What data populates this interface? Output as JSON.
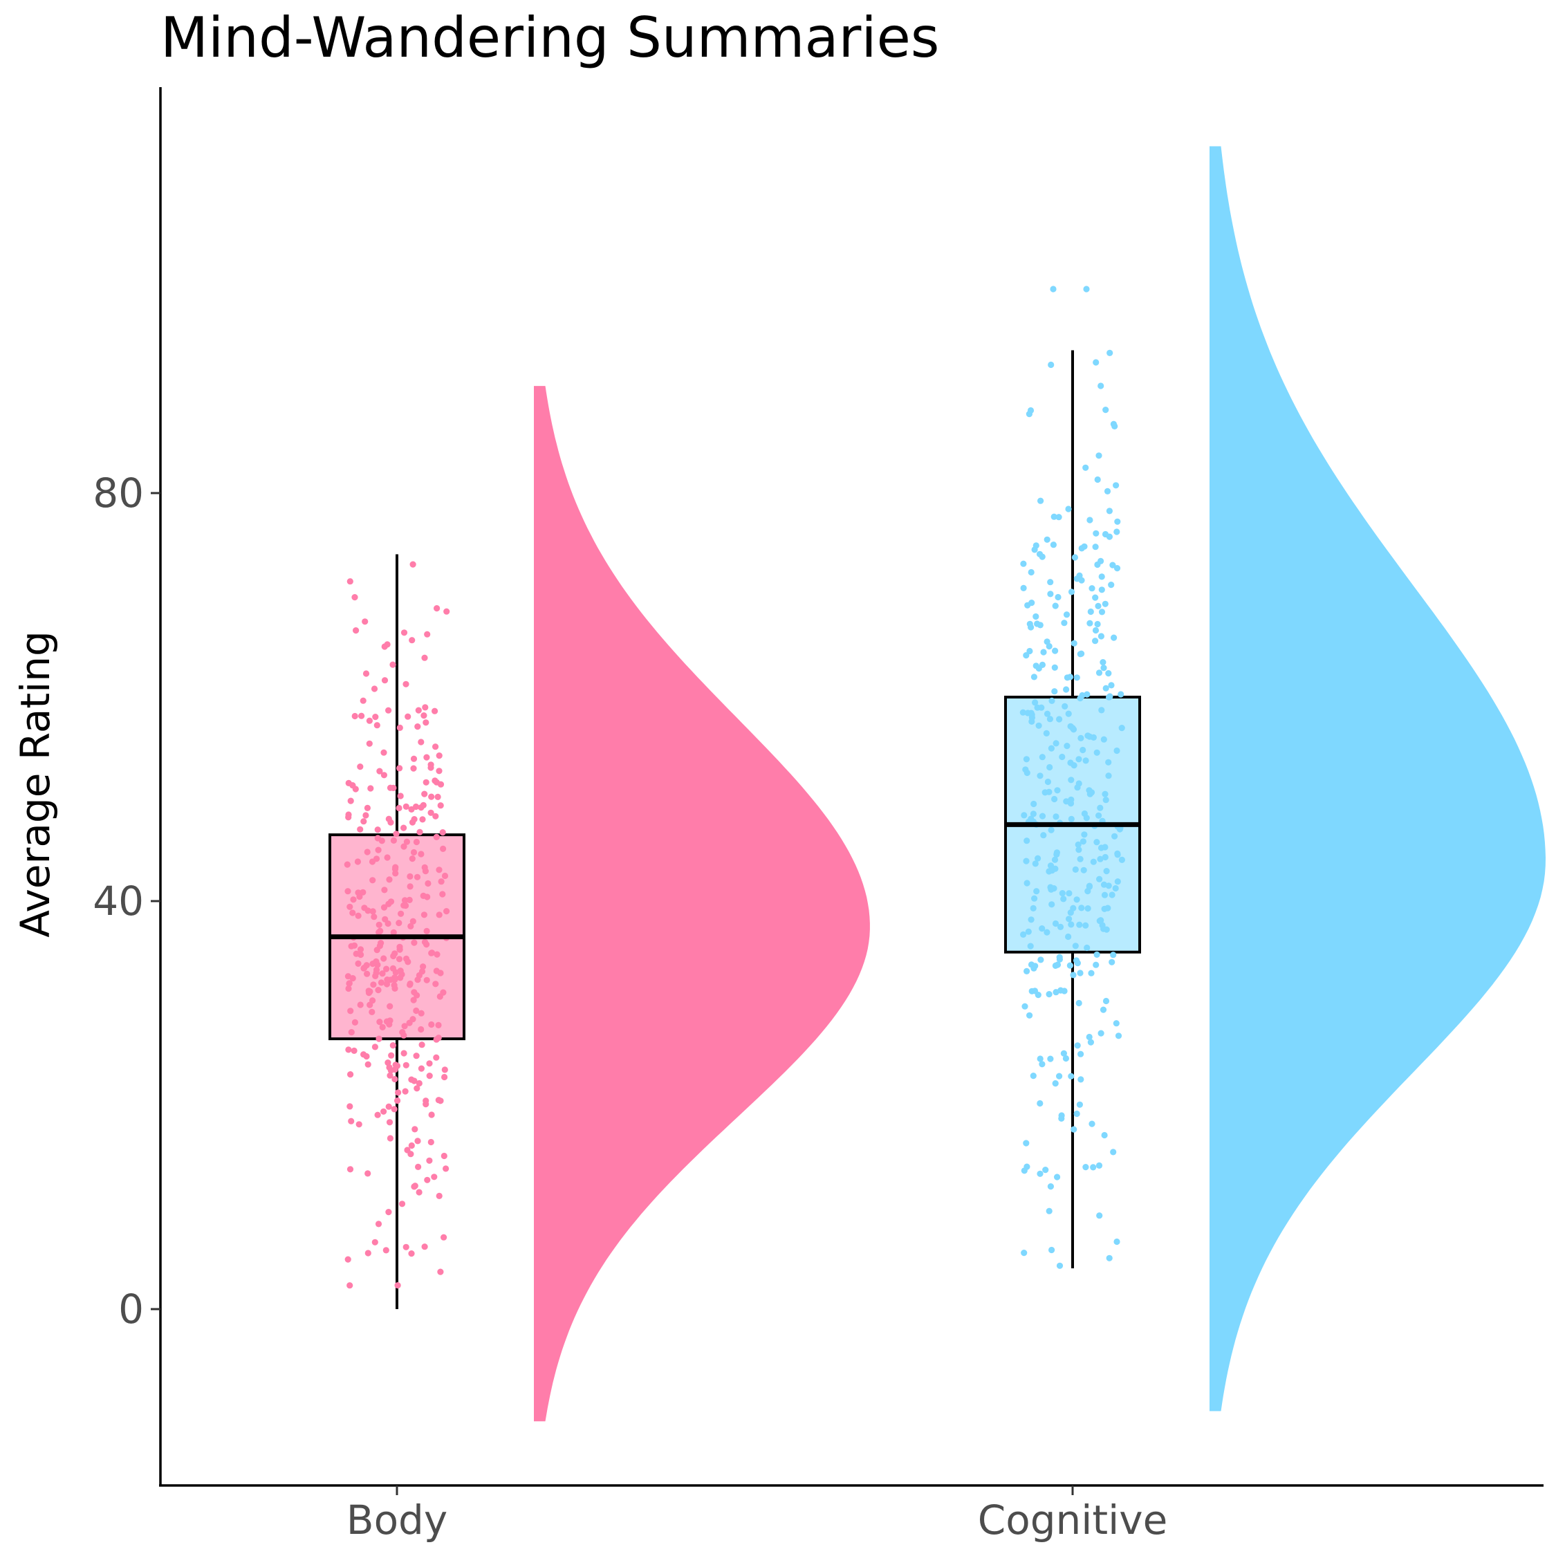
{
  "chart_data": {
    "type": "raincloud",
    "title": "Mind-Wandering Summaries",
    "xlabel": "",
    "ylabel": "Average Rating",
    "ylim": [
      -17.5,
      120
    ],
    "yticks": [
      0,
      40,
      80
    ],
    "grid": false,
    "legend": "none",
    "categories": [
      "Body",
      "Cognitive"
    ],
    "series": [
      {
        "category": "Body",
        "color": "#ff7daa",
        "box_fill": "#ffb5cf",
        "box": {
          "whisker_low": 0,
          "q1": 26.5,
          "median": 36.5,
          "q3": 46.5,
          "whisker_high": 74
        },
        "points_range": [
          0,
          79
        ],
        "density_range": [
          -11,
          90.5
        ],
        "density_peak": 37.5
      },
      {
        "category": "Cognitive",
        "color": "#7fd8ff",
        "box_fill": "#b8ebff",
        "box": {
          "whisker_low": 4,
          "q1": 35,
          "median": 47.5,
          "q3": 60,
          "whisker_high": 94
        },
        "outliers": [
          100,
          100
        ],
        "points_range": [
          4,
          100
        ],
        "density_range": [
          -10,
          114
        ],
        "density_peak": 44
      }
    ]
  }
}
